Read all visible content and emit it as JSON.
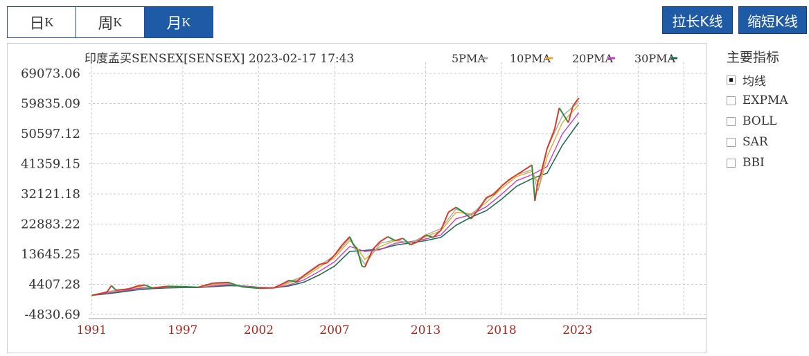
{
  "tabs": [
    {
      "label": "日",
      "suffix": "K"
    },
    {
      "label": "周",
      "suffix": "K"
    },
    {
      "label": "月",
      "suffix": "K"
    }
  ],
  "active_tab": 2,
  "buttons": {
    "lengthen": "拉长K线",
    "shorten": "缩短K线"
  },
  "indicators": {
    "title": "主要指标",
    "items": [
      {
        "label": "均线",
        "checked": true
      },
      {
        "label": "EXPMA",
        "checked": false
      },
      {
        "label": "BOLL",
        "checked": false
      },
      {
        "label": "SAR",
        "checked": false
      },
      {
        "label": "BBI",
        "checked": false
      }
    ]
  },
  "colors": {
    "accent": "#1f5aa6",
    "grid": "#c9c9c9",
    "year_label": "#a0281e"
  },
  "chart_data": {
    "type": "line",
    "title": "印度孟买SENSEX[SENSEX] 2023-02-17 17:43",
    "ylim": [
      -4830.69,
      69073.06
    ],
    "y_ticks": [
      "69073.06",
      "59835.09",
      "50597.12",
      "41359.15",
      "32121.18",
      "22883.22",
      "13645.25",
      "4407.28",
      "-4830.69"
    ],
    "x_tick_labels": [
      "1991",
      "1997",
      "2002",
      "2007",
      "2013",
      "2018",
      "2023"
    ],
    "x_ticks": [
      1991,
      1997,
      2002,
      2007,
      2013,
      2018,
      2023
    ],
    "xlim": [
      1990.8,
      2031.5
    ],
    "legend": [
      {
        "name": "5PMA",
        "color": "#a8a8a8"
      },
      {
        "name": "10PMA",
        "color": "#e8a92a"
      },
      {
        "name": "20PMA",
        "color": "#c83cc8"
      },
      {
        "name": "30PMA",
        "color": "#1f6b50"
      }
    ],
    "legend_position": "top",
    "grid": true,
    "price": {
      "x": [
        1991,
        1991.5,
        1992,
        1992.3,
        1992.6,
        1993,
        1993.5,
        1994,
        1994.5,
        1995,
        1996,
        1997,
        1998,
        1999,
        2000,
        2000.5,
        2001,
        2002,
        2003,
        2003.5,
        2004,
        2004.5,
        2005,
        2006,
        2006.5,
        2007,
        2007.5,
        2008,
        2008.2,
        2008.5,
        2008.8,
        2009,
        2009.5,
        2010,
        2010.5,
        2011,
        2011.5,
        2012,
        2012.5,
        2013,
        2013.5,
        2014,
        2014.5,
        2015,
        2015.5,
        2016,
        2016.5,
        2017,
        2017.5,
        2018,
        2018.5,
        2019,
        2019.5,
        2020,
        2020.2,
        2020.4,
        2020.6,
        2021,
        2021.5,
        2021.8,
        2022,
        2022.4,
        2022.7,
        2023,
        2023.1
      ],
      "y": [
        1000,
        1500,
        2000,
        4000,
        2600,
        2800,
        3000,
        3900,
        4200,
        3300,
        3800,
        3700,
        3500,
        4800,
        5000,
        4200,
        3600,
        3200,
        3300,
        4400,
        5600,
        5200,
        7200,
        10500,
        11000,
        13400,
        16500,
        19000,
        17000,
        15000,
        10000,
        9700,
        15000,
        17500,
        19000,
        17800,
        18500,
        16500,
        17500,
        19500,
        18800,
        21000,
        26500,
        28000,
        26500,
        24500,
        27500,
        31000,
        32000,
        34500,
        36500,
        38000,
        39500,
        41000,
        30000,
        36000,
        38500,
        46000,
        52000,
        58500,
        57000,
        54000,
        59000,
        61000,
        61500
      ]
    },
    "series": [
      {
        "name": "5PMA",
        "x": [
          1991,
          1992,
          1993,
          1994,
          1995,
          1996,
          1997,
          1998,
          1999,
          2000,
          2001,
          2002,
          2003,
          2004,
          2005,
          2006,
          2007,
          2008,
          2008.5,
          2009,
          2010,
          2011,
          2012,
          2013,
          2014,
          2015,
          2016,
          2017,
          2018,
          2019,
          2020,
          2020.4,
          2021,
          2022,
          2023,
          2023.1
        ],
        "y": [
          1000,
          2200,
          2700,
          3800,
          3300,
          3700,
          3600,
          3500,
          4400,
          4700,
          3500,
          3300,
          3400,
          5200,
          7000,
          10200,
          13200,
          18500,
          14000,
          10500,
          17000,
          18000,
          17000,
          19500,
          21500,
          27500,
          25500,
          30500,
          34500,
          38000,
          39500,
          33000,
          46000,
          56000,
          60000,
          60500
        ]
      },
      {
        "name": "10PMA",
        "x": [
          1991,
          1992,
          1993,
          1994,
          1995,
          1996,
          1997,
          1998,
          1999,
          2000,
          2001,
          2002,
          2003,
          2004,
          2005,
          2006,
          2007,
          2008,
          2008.5,
          2009,
          2010,
          2011,
          2012,
          2013,
          2014,
          2015,
          2016,
          2017,
          2018,
          2019,
          2020,
          2020.5,
          2021,
          2022,
          2023,
          2023.1
        ],
        "y": [
          1000,
          2000,
          2600,
          3500,
          3400,
          3600,
          3600,
          3500,
          4200,
          4600,
          3700,
          3300,
          3300,
          4800,
          6600,
          9600,
          12600,
          17800,
          15500,
          12000,
          16000,
          17800,
          17200,
          19000,
          20800,
          26500,
          26000,
          29500,
          33800,
          37500,
          39000,
          34500,
          43500,
          54000,
          59000,
          59500
        ]
      },
      {
        "name": "20PMA",
        "x": [
          1991,
          1992,
          1993,
          1994,
          1995,
          1996,
          1997,
          1998,
          1999,
          2000,
          2001,
          2002,
          2003,
          2004,
          2005,
          2006,
          2007,
          2008,
          2009,
          2010,
          2011,
          2012,
          2013,
          2014,
          2015,
          2016,
          2017,
          2018,
          2019,
          2020,
          2021,
          2022,
          2023,
          2023.1
        ],
        "y": [
          1000,
          1700,
          2400,
          3100,
          3400,
          3500,
          3600,
          3500,
          3900,
          4300,
          3900,
          3400,
          3300,
          4200,
          5800,
          8400,
          11300,
          16000,
          14500,
          15000,
          17000,
          17500,
          18300,
          19500,
          24500,
          25800,
          28200,
          32000,
          36200,
          38000,
          40500,
          50500,
          56500,
          57000
        ]
      },
      {
        "name": "30PMA",
        "x": [
          1991,
          1992,
          1993,
          1994,
          1995,
          1996,
          1997,
          1998,
          1999,
          2000,
          2001,
          2002,
          2003,
          2004,
          2005,
          2006,
          2007,
          2008,
          2009,
          2010,
          2011,
          2012,
          2013,
          2014,
          2015,
          2016,
          2017,
          2018,
          2019,
          2020,
          2021,
          2022,
          2023,
          2023.1
        ],
        "y": [
          1000,
          1500,
          2100,
          2700,
          3100,
          3300,
          3400,
          3400,
          3700,
          4000,
          3900,
          3500,
          3300,
          3900,
          5100,
          7300,
          10000,
          14500,
          14800,
          15200,
          16400,
          17100,
          17800,
          18800,
          22500,
          25000,
          27000,
          30500,
          34500,
          36800,
          38500,
          47000,
          53500,
          54000
        ]
      }
    ]
  }
}
